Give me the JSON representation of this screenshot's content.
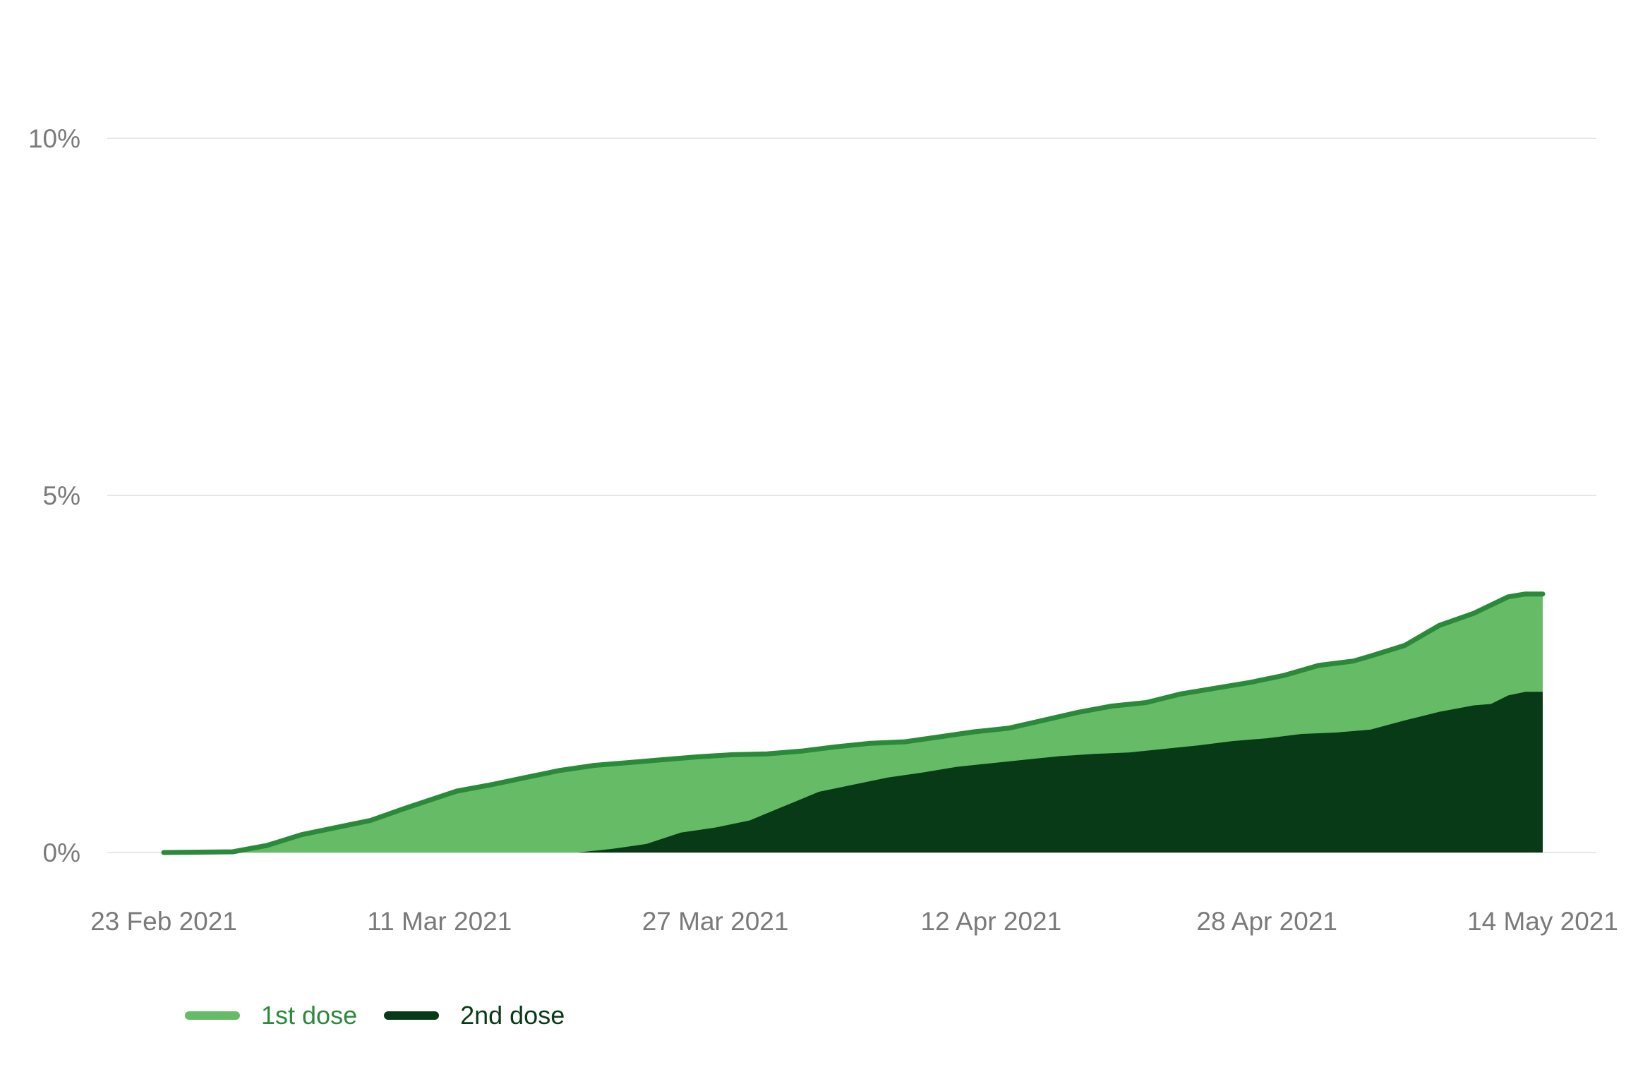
{
  "chart_data": {
    "type": "area",
    "title": "",
    "xlabel": "",
    "ylabel": "",
    "ylim": [
      0,
      10
    ],
    "y_ticks": [
      {
        "value": 0,
        "label": "0%"
      },
      {
        "value": 5,
        "label": "5%"
      },
      {
        "value": 10,
        "label": "10%"
      }
    ],
    "x_ticks": [
      "23 Feb 2021",
      "11 Mar 2021",
      "27 Mar 2021",
      "12 Apr 2021",
      "28 Apr 2021",
      "14 May 2021"
    ],
    "x_start": "2021-02-23",
    "x_end": "2021-05-14",
    "grid": true,
    "legend_position": "bottom-left",
    "series": [
      {
        "name": "1st dose",
        "color": "#66bb66",
        "line_color": "#2a8a3a",
        "points": [
          [
            "2021-02-23",
            0.0
          ],
          [
            "2021-02-25",
            0.005
          ],
          [
            "2021-02-27",
            0.01
          ],
          [
            "2021-03-01",
            0.1
          ],
          [
            "2021-03-03",
            0.25
          ],
          [
            "2021-03-05",
            0.35
          ],
          [
            "2021-03-07",
            0.45
          ],
          [
            "2021-03-09",
            0.62
          ],
          [
            "2021-03-11",
            0.78
          ],
          [
            "2021-03-12",
            0.86
          ],
          [
            "2021-03-14",
            0.95
          ],
          [
            "2021-03-16",
            1.05
          ],
          [
            "2021-03-18",
            1.15
          ],
          [
            "2021-03-20",
            1.22
          ],
          [
            "2021-03-22",
            1.26
          ],
          [
            "2021-03-24",
            1.3
          ],
          [
            "2021-03-26",
            1.34
          ],
          [
            "2021-03-28",
            1.37
          ],
          [
            "2021-03-30",
            1.38
          ],
          [
            "2021-04-01",
            1.42
          ],
          [
            "2021-04-03",
            1.48
          ],
          [
            "2021-04-05",
            1.53
          ],
          [
            "2021-04-07",
            1.55
          ],
          [
            "2021-04-09",
            1.62
          ],
          [
            "2021-04-11",
            1.69
          ],
          [
            "2021-04-13",
            1.74
          ],
          [
            "2021-04-15",
            1.85
          ],
          [
            "2021-04-17",
            1.96
          ],
          [
            "2021-04-19",
            2.05
          ],
          [
            "2021-04-21",
            2.1
          ],
          [
            "2021-04-23",
            2.22
          ],
          [
            "2021-04-25",
            2.3
          ],
          [
            "2021-04-27",
            2.38
          ],
          [
            "2021-04-29",
            2.48
          ],
          [
            "2021-05-01",
            2.62
          ],
          [
            "2021-05-03",
            2.68
          ],
          [
            "2021-05-04",
            2.75
          ],
          [
            "2021-05-06",
            2.9
          ],
          [
            "2021-05-08",
            3.18
          ],
          [
            "2021-05-10",
            3.35
          ],
          [
            "2021-05-12",
            3.58
          ],
          [
            "2021-05-13",
            3.62
          ],
          [
            "2021-05-14",
            3.62
          ]
        ]
      },
      {
        "name": "2nd dose",
        "color": "#083a17",
        "line_color": "#083a17",
        "points": [
          [
            "2021-02-23",
            0.0
          ],
          [
            "2021-03-19",
            0.0
          ],
          [
            "2021-03-21",
            0.05
          ],
          [
            "2021-03-23",
            0.12
          ],
          [
            "2021-03-25",
            0.28
          ],
          [
            "2021-03-27",
            0.35
          ],
          [
            "2021-03-29",
            0.45
          ],
          [
            "2021-03-31",
            0.65
          ],
          [
            "2021-04-02",
            0.85
          ],
          [
            "2021-04-04",
            0.95
          ],
          [
            "2021-04-06",
            1.05
          ],
          [
            "2021-04-08",
            1.12
          ],
          [
            "2021-04-10",
            1.2
          ],
          [
            "2021-04-12",
            1.25
          ],
          [
            "2021-04-14",
            1.3
          ],
          [
            "2021-04-16",
            1.35
          ],
          [
            "2021-04-18",
            1.38
          ],
          [
            "2021-04-20",
            1.4
          ],
          [
            "2021-04-22",
            1.45
          ],
          [
            "2021-04-24",
            1.5
          ],
          [
            "2021-04-26",
            1.56
          ],
          [
            "2021-04-28",
            1.6
          ],
          [
            "2021-04-30",
            1.66
          ],
          [
            "2021-05-02",
            1.68
          ],
          [
            "2021-05-04",
            1.72
          ],
          [
            "2021-05-06",
            1.85
          ],
          [
            "2021-05-08",
            1.97
          ],
          [
            "2021-05-10",
            2.06
          ],
          [
            "2021-05-11",
            2.08
          ],
          [
            "2021-05-12",
            2.2
          ],
          [
            "2021-05-13",
            2.25
          ],
          [
            "2021-05-14",
            2.25
          ]
        ]
      }
    ]
  },
  "legend": {
    "item1_label": "1st dose",
    "item2_label": "2nd dose"
  }
}
